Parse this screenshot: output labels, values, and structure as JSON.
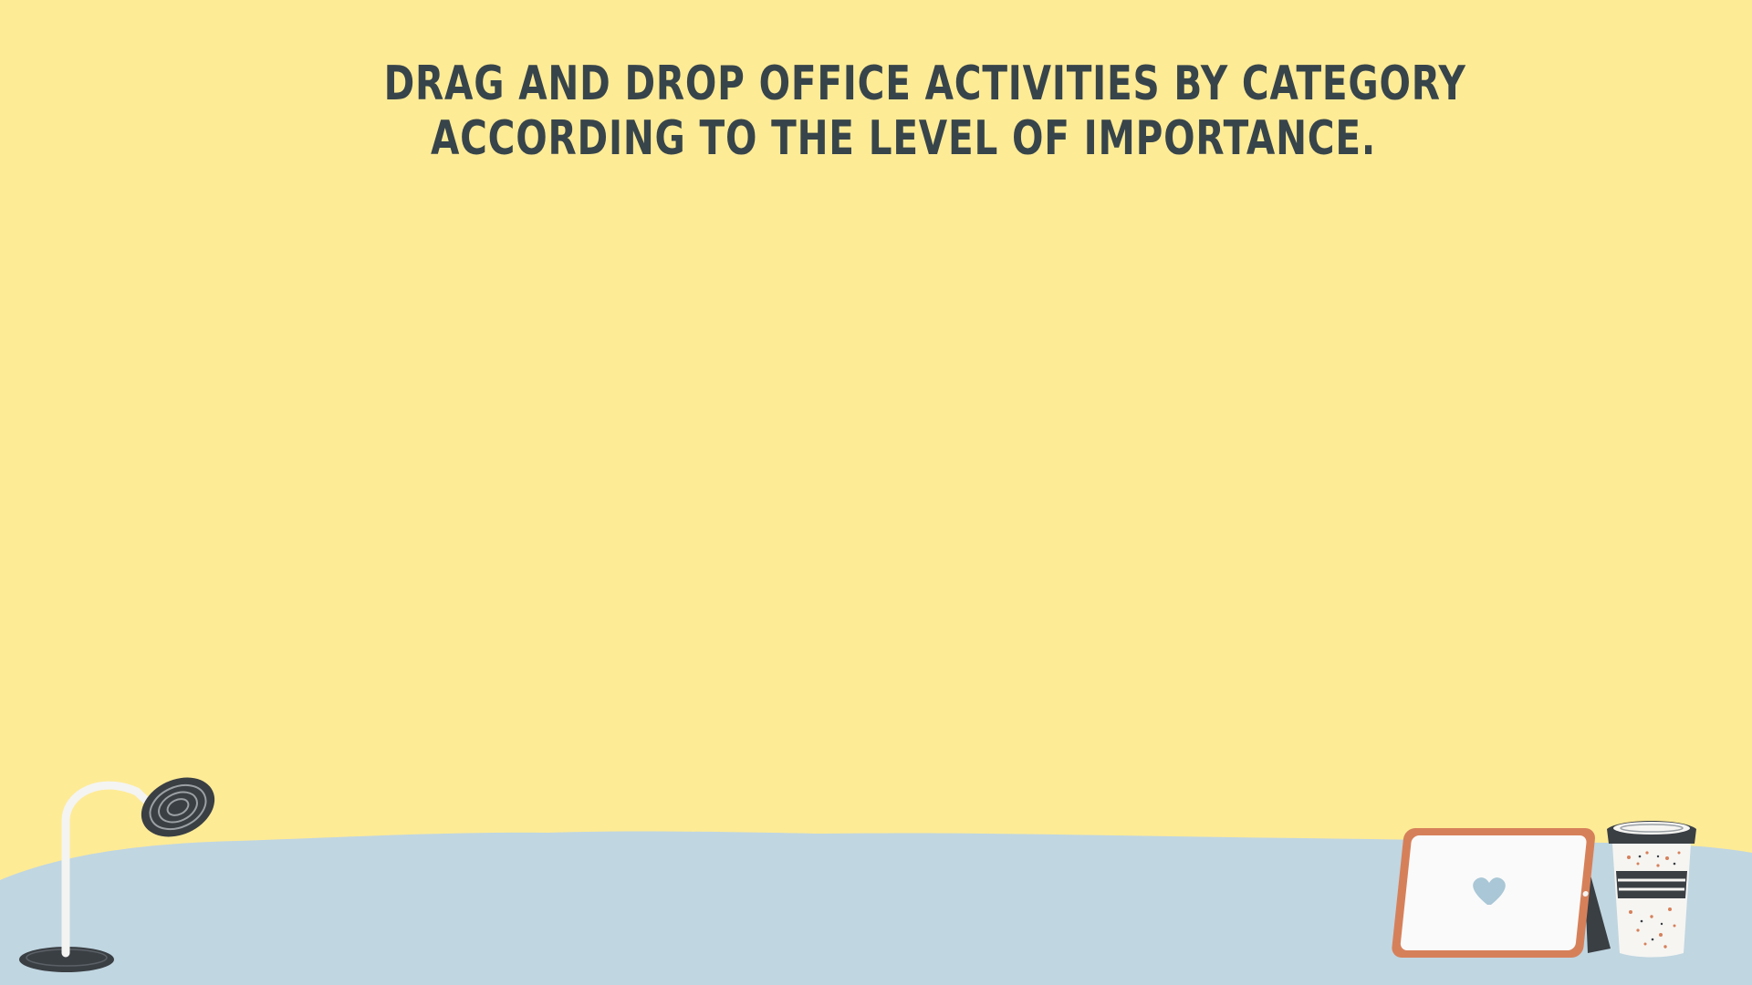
{
  "activity": {
    "instruction_line1": "Drag and drop office activities by category",
    "instruction_line2": "according to the level of importance."
  },
  "theme": {
    "background": "#feeb96",
    "floor": "#c0d6e1",
    "text": "#37444a",
    "tablet_frame": "#d6805a",
    "accent_dark": "#3a3f44"
  },
  "decorations": {
    "lamp": "desk-lamp-icon",
    "tablet": "tablet-heart-icon",
    "cup": "coffee-cup-icon"
  }
}
